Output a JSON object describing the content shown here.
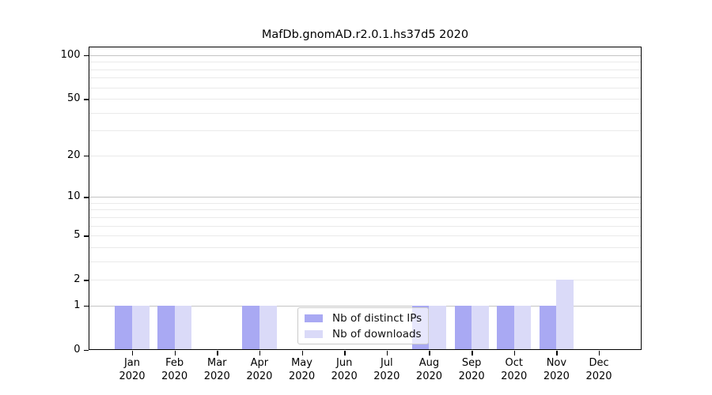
{
  "title": "MafDb.gnomAD.r2.0.1.hs37d5 2020",
  "chart_data": {
    "type": "bar",
    "title": "MafDb.gnomAD.r2.0.1.hs37d5 2020",
    "x": {
      "months": [
        "Jan",
        "Feb",
        "Mar",
        "Apr",
        "May",
        "Jun",
        "Jul",
        "Aug",
        "Sep",
        "Oct",
        "Nov",
        "Dec"
      ],
      "year": "2020"
    },
    "series": [
      {
        "name": "Nb of distinct IPs",
        "color": "#a9a9f3",
        "values": [
          1,
          1,
          0,
          1,
          0,
          0,
          0,
          1,
          1,
          1,
          1,
          0
        ]
      },
      {
        "name": "Nb of downloads",
        "color": "#dadaf8",
        "values": [
          1,
          1,
          0,
          1,
          0,
          0,
          0,
          1,
          1,
          1,
          2,
          0
        ]
      }
    ],
    "y_axis": {
      "scale": "log1p",
      "tick_values": [
        0,
        1,
        2,
        5,
        10,
        20,
        50,
        100
      ],
      "minor_gridlines": [
        3,
        4,
        6,
        7,
        8,
        9,
        30,
        40,
        60,
        70,
        80,
        90
      ],
      "ylim": [
        0,
        115
      ]
    },
    "legend": {
      "position": "lower-center",
      "frame_alpha": 0.72
    },
    "colors": {
      "grid_decade": "#c4c4c4",
      "grid_minor": "#eaeaea",
      "axis": "#000000",
      "background": "#ffffff"
    }
  }
}
